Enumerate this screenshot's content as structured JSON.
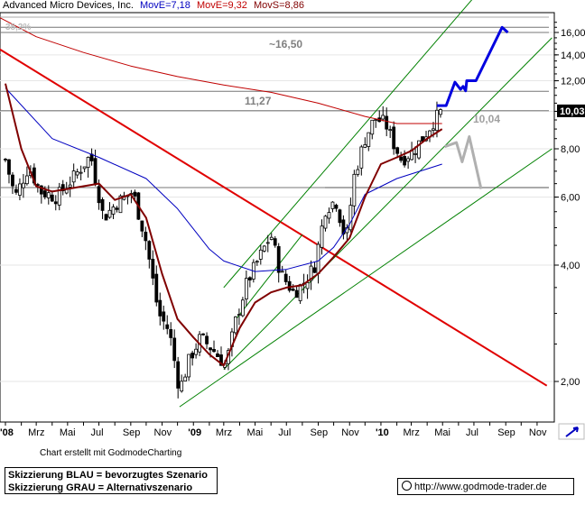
{
  "header": {
    "name": "Advanced Micro Devices, Inc.",
    "movE1": "MovE=7,18",
    "movE2": "MovE=9,32",
    "movS": "MovS=8,86"
  },
  "credit": "Chart erstellt mit GodmodeCharting",
  "notes": {
    "line1": "Skizzierung BLAU = bevorzugtes Szenario",
    "line2": "Skizzierung GRAU = Alternativszenario"
  },
  "url": "http://www.godmode-trader.de",
  "colors": {
    "movE_short": "#800000",
    "movE_long": "#c00000",
    "movS": "#0000c0",
    "trend_red": "#e00000",
    "channel_green": "#008000",
    "scenario_blue": "#0000e0",
    "scenario_gray": "#b0b0b0"
  },
  "chart_data": {
    "type": "candlestick",
    "y_scale": "log",
    "ylim": [
      1.7,
      18.0
    ],
    "y_ticks": [
      "2,00",
      "4,00",
      "6,00",
      "8,00",
      "10,00",
      "12,00",
      "14,00",
      "16,00"
    ],
    "x_ticks": [
      "'08",
      "Mrz",
      "Mai",
      "Jul",
      "Sep",
      "Nov",
      "'09",
      "Mrz",
      "Mai",
      "Jul",
      "Sep",
      "Nov",
      "'10",
      "Mrz",
      "Mai",
      "Jul",
      "Sep",
      "Nov"
    ],
    "current_price_label": "10,03",
    "annotations": [
      "38,2%",
      "~16,50",
      "11,27",
      "10,04"
    ],
    "horizontal_levels": [
      16.5,
      16.0,
      11.27,
      10.04,
      6.35
    ],
    "close_anchors": [
      [
        "2008-01-01",
        7.5
      ],
      [
        "2008-01-20",
        6.0
      ],
      [
        "2008-02-15",
        7.2
      ],
      [
        "2008-03-10",
        6.2
      ],
      [
        "2008-04-10",
        6.0
      ],
      [
        "2008-05-15",
        6.8
      ],
      [
        "2008-06-15",
        7.7
      ],
      [
        "2008-07-10",
        5.3
      ],
      [
        "2008-08-05",
        5.8
      ],
      [
        "2008-09-05",
        6.2
      ],
      [
        "2008-10-01",
        4.6
      ],
      [
        "2008-10-25",
        3.0
      ],
      [
        "2008-11-15",
        2.7
      ],
      [
        "2008-12-05",
        1.9
      ],
      [
        "2008-12-25",
        2.3
      ],
      [
        "2009-01-15",
        2.6
      ],
      [
        "2009-02-10",
        2.4
      ],
      [
        "2009-03-05",
        2.2
      ],
      [
        "2009-03-25",
        2.9
      ],
      [
        "2009-04-15",
        3.6
      ],
      [
        "2009-05-10",
        4.2
      ],
      [
        "2009-06-01",
        4.8
      ],
      [
        "2009-06-20",
        3.8
      ],
      [
        "2009-07-15",
        3.4
      ],
      [
        "2009-08-05",
        3.6
      ],
      [
        "2009-08-25",
        4.0
      ],
      [
        "2009-09-15",
        5.6
      ],
      [
        "2009-10-05",
        5.9
      ],
      [
        "2009-10-25",
        4.6
      ],
      [
        "2009-11-10",
        6.8
      ],
      [
        "2009-12-01",
        8.5
      ],
      [
        "2009-12-20",
        9.6
      ],
      [
        "2010-01-10",
        9.3
      ],
      [
        "2010-01-25",
        8.3
      ],
      [
        "2010-02-10",
        7.5
      ],
      [
        "2010-03-05",
        7.9
      ],
      [
        "2010-03-25",
        8.6
      ],
      [
        "2010-04-15",
        9.5
      ],
      [
        "2010-04-30",
        10.03
      ]
    ],
    "movE_short": [
      [
        "2008-01-01",
        11.8
      ],
      [
        "2008-02-01",
        8.0
      ],
      [
        "2008-03-01",
        6.4
      ],
      [
        "2008-04-01",
        6.2
      ],
      [
        "2008-05-01",
        6.3
      ],
      [
        "2008-06-01",
        6.4
      ],
      [
        "2008-07-01",
        6.5
      ],
      [
        "2008-08-01",
        5.9
      ],
      [
        "2008-09-01",
        6.1
      ],
      [
        "2008-10-01",
        5.3
      ],
      [
        "2008-11-01",
        3.8
      ],
      [
        "2008-12-01",
        2.9
      ],
      [
        "2009-01-01",
        2.6
      ],
      [
        "2009-02-01",
        2.35
      ],
      [
        "2009-03-01",
        2.2
      ],
      [
        "2009-04-01",
        2.75
      ],
      [
        "2009-05-01",
        3.2
      ],
      [
        "2009-06-01",
        3.4
      ],
      [
        "2009-07-01",
        3.5
      ],
      [
        "2009-08-01",
        3.55
      ],
      [
        "2009-09-01",
        3.8
      ],
      [
        "2009-10-01",
        4.2
      ],
      [
        "2009-11-01",
        4.7
      ],
      [
        "2009-12-01",
        6.0
      ],
      [
        "2010-01-01",
        7.3
      ],
      [
        "2010-02-01",
        7.6
      ],
      [
        "2010-03-01",
        7.9
      ],
      [
        "2010-04-01",
        8.5
      ],
      [
        "2010-04-30",
        9.0
      ]
    ],
    "movS": [
      [
        "2008-01-01",
        11.5
      ],
      [
        "2008-04-01",
        8.5
      ],
      [
        "2008-07-01",
        7.6
      ],
      [
        "2008-10-01",
        6.7
      ],
      [
        "2008-12-01",
        5.6
      ],
      [
        "2009-02-01",
        4.4
      ],
      [
        "2009-03-01",
        4.1
      ],
      [
        "2009-05-01",
        3.85
      ],
      [
        "2009-07-01",
        3.9
      ],
      [
        "2009-09-01",
        4.1
      ],
      [
        "2009-10-01",
        4.45
      ],
      [
        "2009-11-01",
        5.1
      ],
      [
        "2009-12-01",
        6.1
      ],
      [
        "2010-02-01",
        6.7
      ],
      [
        "2010-04-30",
        7.3
      ]
    ],
    "movE_long": [
      [
        "2007-12-20",
        17.5
      ],
      [
        "2008-03-01",
        15.6
      ],
      [
        "2008-06-01",
        14.2
      ],
      [
        "2008-09-01",
        13.1
      ],
      [
        "2008-12-01",
        12.3
      ],
      [
        "2009-03-01",
        11.7
      ],
      [
        "2009-06-01",
        11.2
      ],
      [
        "2009-09-01",
        10.5
      ],
      [
        "2009-12-01",
        9.7
      ],
      [
        "2010-02-01",
        9.3
      ],
      [
        "2010-04-30",
        9.3
      ]
    ],
    "trend_lines": [
      {
        "name": "downtrend",
        "color": "red",
        "points": [
          [
            "2007-12-20",
            14.5
          ],
          [
            "2010-11-20",
            1.95
          ]
        ]
      },
      {
        "name": "channel-upper",
        "color": "green",
        "points": [
          [
            "2009-03-01",
            3.5
          ],
          [
            "2010-07-05",
            20.0
          ]
        ]
      },
      {
        "name": "channel-middle",
        "color": "green",
        "points": [
          [
            "2009-03-01",
            2.15
          ],
          [
            "2010-11-30",
            15.5
          ]
        ]
      },
      {
        "name": "channel-lower",
        "color": "green",
        "points": [
          [
            "2008-12-05",
            1.72
          ],
          [
            "2010-11-30",
            8.0
          ]
        ]
      }
    ],
    "scenario_blue": [
      [
        "2010-04-20",
        10.35
      ],
      [
        "2010-05-08",
        10.35
      ],
      [
        "2010-05-25",
        11.9
      ],
      [
        "2010-06-05",
        11.4
      ],
      [
        "2010-06-10",
        11.6
      ],
      [
        "2010-06-15",
        11.3
      ],
      [
        "2010-06-17",
        12.0
      ],
      [
        "2010-07-05",
        12.0
      ],
      [
        "2010-08-15",
        15.5
      ],
      [
        "2010-08-25",
        16.5
      ],
      [
        "2010-09-05",
        16.0
      ]
    ],
    "scenario_gray": [
      [
        "2010-05-05",
        8.1
      ],
      [
        "2010-05-28",
        8.3
      ],
      [
        "2010-06-08",
        7.4
      ],
      [
        "2010-06-22",
        8.6
      ],
      [
        "2010-07-15",
        6.3
      ]
    ]
  }
}
